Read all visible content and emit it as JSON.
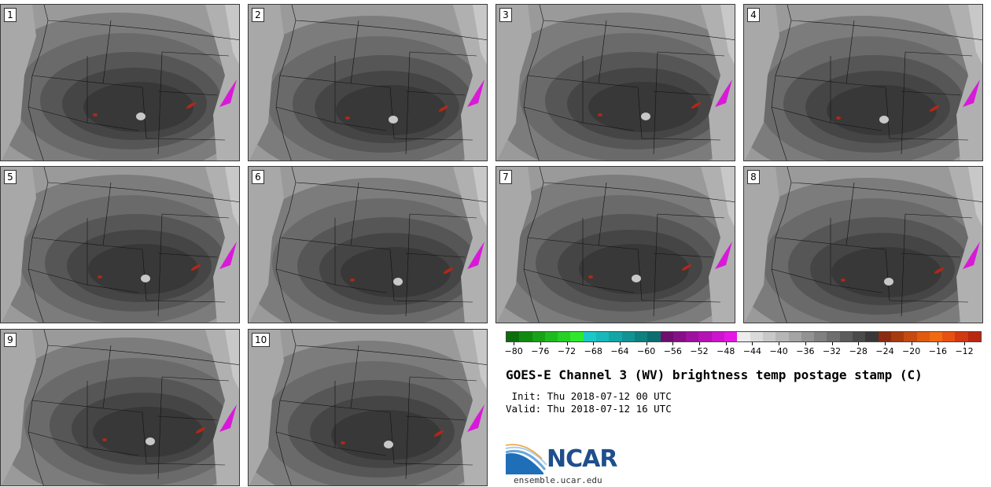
{
  "panels": [
    {
      "number": "1"
    },
    {
      "number": "2"
    },
    {
      "number": "3"
    },
    {
      "number": "4"
    },
    {
      "number": "5"
    },
    {
      "number": "6"
    },
    {
      "number": "7"
    },
    {
      "number": "8"
    },
    {
      "number": "9"
    },
    {
      "number": "10"
    }
  ],
  "colorbar": {
    "colors": [
      "#0b6e0b",
      "#108a10",
      "#18a218",
      "#1fba1f",
      "#26d026",
      "#2ee82e",
      "#1ac8c8",
      "#18b8b8",
      "#14a6a6",
      "#119393",
      "#0e8080",
      "#0b6e6e",
      "#6e0e6e",
      "#860e86",
      "#9e109e",
      "#b412b4",
      "#cc14cc",
      "#e418e4",
      "#ececec",
      "#dadada",
      "#c8c8c8",
      "#b6b6b6",
      "#a4a4a4",
      "#929292",
      "#808080",
      "#6e6e6e",
      "#5c5c5c",
      "#4a4a4a",
      "#383838",
      "#8b2c10",
      "#a83a10",
      "#c44a10",
      "#e05a10",
      "#f06a12",
      "#e85012",
      "#d03a10",
      "#b82810"
    ],
    "tick_labels": [
      "−80",
      "−76",
      "−72",
      "−68",
      "−64",
      "−60",
      "−56",
      "−52",
      "−48",
      "−44",
      "−40",
      "−36",
      "−32",
      "−28",
      "−24",
      "−20",
      "−16",
      "−12"
    ]
  },
  "title": "GOES-E Channel 3 (WV) brightness temp postage stamp (C)",
  "init_line": " Init: Thu 2018-07-12 00 UTC",
  "valid_line": "Valid: Thu 2018-07-12 16 UTC",
  "logo": {
    "text": "NCAR",
    "url": "ensemble.ucar.edu"
  }
}
